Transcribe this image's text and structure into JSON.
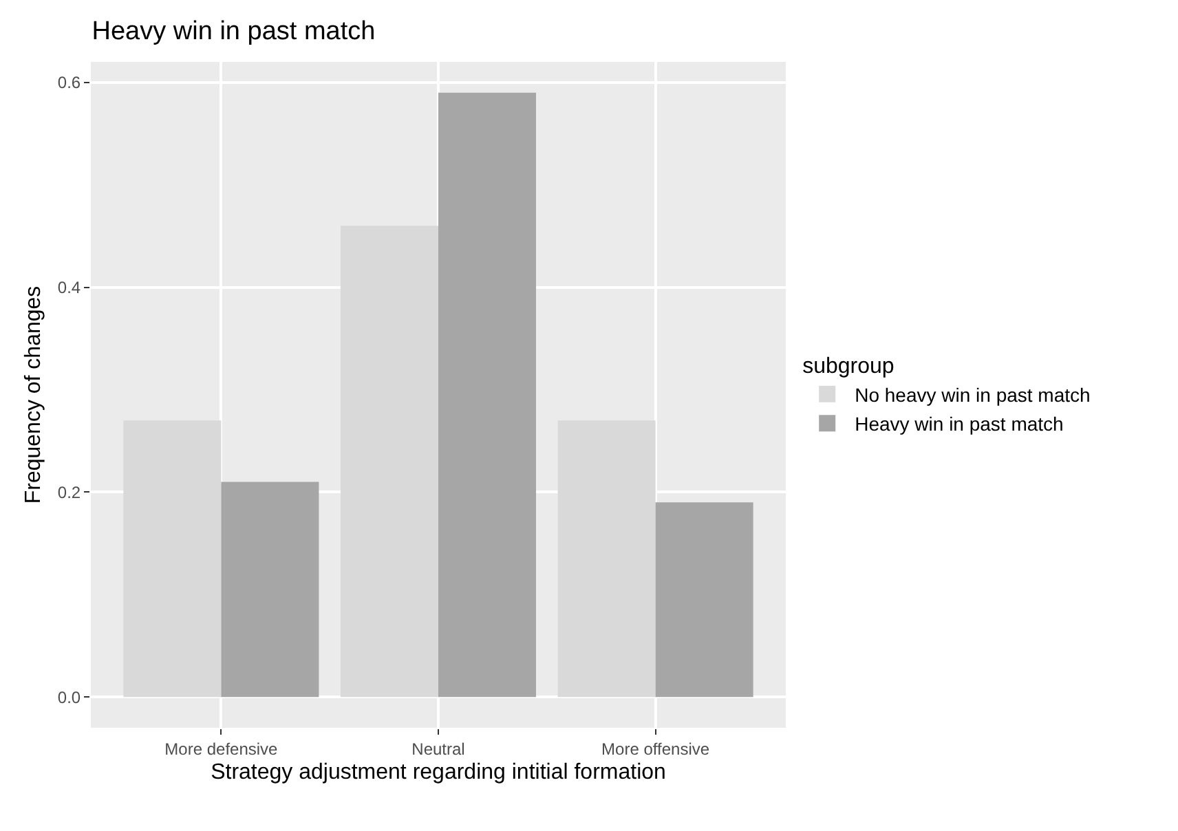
{
  "chart_data": {
    "type": "bar",
    "title": "Heavy win in past match",
    "xlabel": "Strategy adjustment regarding intitial formation",
    "ylabel": "Frequency of changes",
    "legend_title": "subgroup",
    "categories": [
      "More defensive",
      "Neutral",
      "More offensive"
    ],
    "series": [
      {
        "name": "No heavy win in past match",
        "color": "#d9d9d9",
        "values": [
          0.27,
          0.46,
          0.27
        ]
      },
      {
        "name": "Heavy win in past match",
        "color": "#a6a6a6",
        "values": [
          0.21,
          0.59,
          0.19
        ]
      }
    ],
    "ylim": [
      -0.03,
      0.62
    ],
    "yticks": [
      {
        "value": 0,
        "label": "0.0"
      },
      {
        "value": 0.2,
        "label": "0.2"
      },
      {
        "value": 0.4,
        "label": "0.4"
      },
      {
        "value": 0.6,
        "label": "0.6"
      }
    ],
    "grid": true,
    "legend": "right"
  }
}
